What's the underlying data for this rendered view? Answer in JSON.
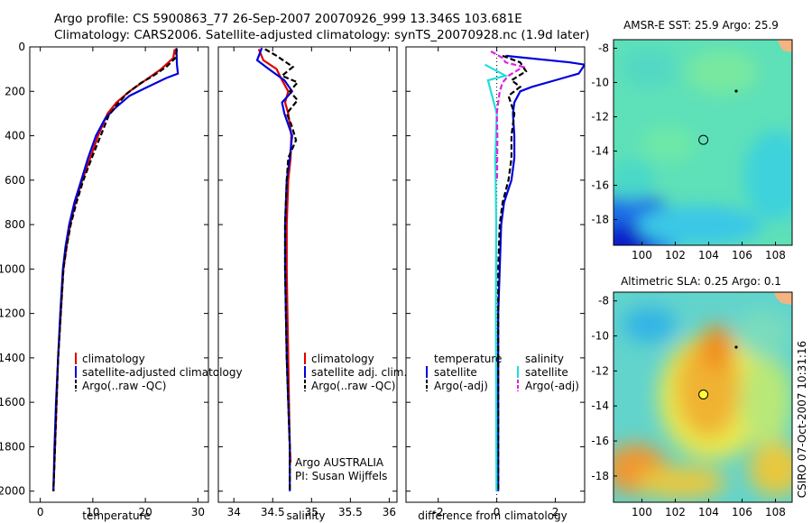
{
  "title_line1": "Argo profile: CS 5900863_77 26-Sep-2007 20070926_999 13.346S 103.681E",
  "title_line2": "Climatology: CARS2006. Satellite-adjusted climatology: synTS_20070928.nc (1.9d later)",
  "side_label": "CSIRO 07-Oct-2007 10:31:16",
  "credit_line1": "Argo AUSTRALIA",
  "credit_line2": "PI: Susan Wijffels",
  "colors": {
    "climatology": "#dd0000",
    "satellite": "#0000dd",
    "argo": "#000000",
    "sat_salinity": "#22dddd",
    "argo_salinity_diff": "#dd22dd"
  },
  "chart_data": [
    {
      "type": "line",
      "id": "temperature",
      "xlabel": "temperature",
      "ylabel": "",
      "xlim": [
        -2,
        32
      ],
      "ylim": [
        2050,
        0
      ],
      "xticks": [
        0,
        10,
        20,
        30
      ],
      "yticks": [
        0,
        200,
        400,
        600,
        800,
        1000,
        1200,
        1400,
        1600,
        1800,
        2000
      ],
      "legend": [
        "climatology",
        "satellite-adjusted climatology",
        "Argo(..raw -QC)"
      ],
      "series": [
        {
          "name": "climatology",
          "color": "#dd0000",
          "style": "solid",
          "points": [
            [
              25.6,
              10
            ],
            [
              25.3,
              50
            ],
            [
              23,
              100
            ],
            [
              20,
              150
            ],
            [
              17,
              200
            ],
            [
              14.5,
              250
            ],
            [
              12.8,
              300
            ],
            [
              11,
              400
            ],
            [
              9.5,
              500
            ],
            [
              8,
              600
            ],
            [
              6.7,
              700
            ],
            [
              5.7,
              800
            ],
            [
              5,
              900
            ],
            [
              4.4,
              1000
            ],
            [
              3.9,
              1200
            ],
            [
              3.4,
              1400
            ],
            [
              3.1,
              1600
            ],
            [
              2.8,
              1800
            ],
            [
              2.5,
              2000
            ]
          ]
        },
        {
          "name": "satellite-adjusted climatology",
          "color": "#0000dd",
          "style": "solid",
          "points": [
            [
              25.9,
              5
            ],
            [
              26,
              80
            ],
            [
              26.2,
              120
            ],
            [
              24,
              140
            ],
            [
              20.5,
              180
            ],
            [
              17,
              220
            ],
            [
              14.5,
              270
            ],
            [
              12.4,
              320
            ],
            [
              10.6,
              400
            ],
            [
              9.1,
              500
            ],
            [
              7.8,
              600
            ],
            [
              6.5,
              700
            ],
            [
              5.5,
              800
            ],
            [
              4.8,
              900
            ],
            [
              4.3,
              1000
            ],
            [
              3.8,
              1200
            ],
            [
              3.4,
              1400
            ],
            [
              3,
              1600
            ],
            [
              2.7,
              1800
            ],
            [
              2.5,
              2000
            ]
          ]
        },
        {
          "name": "Argo(..raw -QC)",
          "color": "#000000",
          "style": "dashed",
          "points": [
            [
              26,
              10
            ],
            [
              25.7,
              50
            ],
            [
              24,
              90
            ],
            [
              21.5,
              130
            ],
            [
              19,
              165
            ],
            [
              16.5,
              210
            ],
            [
              14.6,
              260
            ],
            [
              13,
              310
            ],
            [
              11.5,
              400
            ],
            [
              9.8,
              500
            ],
            [
              8.2,
              600
            ],
            [
              6.9,
              700
            ],
            [
              5.8,
              800
            ],
            [
              5,
              900
            ],
            [
              4.4,
              1000
            ],
            [
              3.9,
              1200
            ],
            [
              3.4,
              1400
            ],
            [
              3.1,
              1600
            ],
            [
              2.8,
              1800
            ],
            [
              2.5,
              2000
            ]
          ]
        }
      ]
    },
    {
      "type": "line",
      "id": "salinity",
      "xlabel": "salinity",
      "ylabel": "",
      "xlim": [
        33.8,
        36.1
      ],
      "ylim": [
        2050,
        0
      ],
      "xticks": [
        34,
        34.5,
        35,
        35.5,
        36
      ],
      "xtick_labels": [
        "34",
        "34.5",
        "35",
        "35.5",
        "36"
      ],
      "legend": [
        "climatology",
        "satellite adj. clim.",
        "Argo(..raw -QC)"
      ],
      "series": [
        {
          "name": "climatology",
          "color": "#dd0000",
          "style": "solid",
          "points": [
            [
              34.32,
              10
            ],
            [
              34.38,
              60
            ],
            [
              34.55,
              100
            ],
            [
              34.62,
              150
            ],
            [
              34.7,
              200
            ],
            [
              34.66,
              250
            ],
            [
              34.7,
              300
            ],
            [
              34.74,
              400
            ],
            [
              34.73,
              500
            ],
            [
              34.7,
              600
            ],
            [
              34.68,
              800
            ],
            [
              34.68,
              1000
            ],
            [
              34.69,
              1200
            ],
            [
              34.7,
              1400
            ],
            [
              34.71,
              1600
            ],
            [
              34.72,
              1800
            ],
            [
              34.73,
              1870
            ]
          ]
        },
        {
          "name": "satellite adj. clim.",
          "color": "#0000dd",
          "style": "solid",
          "points": [
            [
              34.36,
              5
            ],
            [
              34.3,
              60
            ],
            [
              34.45,
              100
            ],
            [
              34.65,
              150
            ],
            [
              34.75,
              200
            ],
            [
              34.62,
              250
            ],
            [
              34.65,
              300
            ],
            [
              34.75,
              400
            ],
            [
              34.72,
              500
            ],
            [
              34.68,
              600
            ],
            [
              34.66,
              800
            ],
            [
              34.66,
              1000
            ],
            [
              34.67,
              1200
            ],
            [
              34.68,
              1400
            ],
            [
              34.7,
              1600
            ],
            [
              34.72,
              1800
            ],
            [
              34.72,
              2000
            ]
          ]
        },
        {
          "name": "Argo(..raw -QC)",
          "color": "#000000",
          "style": "dashed",
          "points": [
            [
              34.4,
              10
            ],
            [
              34.55,
              40
            ],
            [
              34.76,
              90
            ],
            [
              34.62,
              130
            ],
            [
              34.82,
              160
            ],
            [
              34.72,
              200
            ],
            [
              34.82,
              240
            ],
            [
              34.68,
              300
            ],
            [
              34.74,
              350
            ],
            [
              34.8,
              420
            ],
            [
              34.7,
              500
            ],
            [
              34.68,
              600
            ],
            [
              34.66,
              800
            ],
            [
              34.66,
              1000
            ],
            [
              34.67,
              1200
            ],
            [
              34.68,
              1400
            ],
            [
              34.7,
              1600
            ],
            [
              34.72,
              1800
            ],
            [
              34.72,
              2000
            ]
          ]
        }
      ]
    },
    {
      "type": "line",
      "id": "difference",
      "xlabel": "difference from climatology",
      "ylabel": "",
      "xlim": [
        -3.1,
        3
      ],
      "ylim": [
        2050,
        0
      ],
      "xticks": [
        -2,
        0,
        2
      ],
      "legend_groups": [
        {
          "heading": "temperature",
          "items": [
            "satellite",
            "Argo(-adj)"
          ]
        },
        {
          "heading": "salinity",
          "items": [
            "satellite",
            "Argo(-adj)"
          ]
        }
      ],
      "series": [
        {
          "name": "temperature satellite",
          "color": "#0000dd",
          "style": "solid",
          "points": [
            [
              0.3,
              40
            ],
            [
              2.5,
              70
            ],
            [
              3.0,
              80
            ],
            [
              2.8,
              120
            ],
            [
              2.0,
              150
            ],
            [
              1.2,
              180
            ],
            [
              0.8,
              200
            ],
            [
              0.6,
              250
            ],
            [
              0.55,
              300
            ],
            [
              0.6,
              400
            ],
            [
              0.6,
              500
            ],
            [
              0.5,
              600
            ],
            [
              0.25,
              700
            ],
            [
              0.15,
              800
            ],
            [
              0.1,
              1000
            ],
            [
              0.05,
              1200
            ],
            [
              0.05,
              1600
            ],
            [
              0.05,
              2000
            ]
          ]
        },
        {
          "name": "temperature Argo(-adj)",
          "color": "#000000",
          "style": "dashed",
          "points": [
            [
              0.2,
              40
            ],
            [
              0.8,
              70
            ],
            [
              1.0,
              110
            ],
            [
              0.5,
              150
            ],
            [
              0.8,
              180
            ],
            [
              0.4,
              220
            ],
            [
              0.6,
              300
            ],
            [
              0.5,
              400
            ],
            [
              0.5,
              500
            ],
            [
              0.4,
              600
            ],
            [
              0.2,
              700
            ],
            [
              0.1,
              800
            ],
            [
              0.05,
              1000
            ],
            [
              0.05,
              1400
            ],
            [
              0.05,
              2000
            ]
          ]
        },
        {
          "name": "salinity satellite",
          "color": "#22dddd",
          "style": "solid",
          "points": [
            [
              -0.4,
              80
            ],
            [
              0.3,
              130
            ],
            [
              -0.3,
              150
            ],
            [
              -0.2,
              200
            ],
            [
              0.0,
              300
            ],
            [
              -0.05,
              500
            ],
            [
              -0.02,
              800
            ],
            [
              -0.03,
              1200
            ],
            [
              -0.02,
              1600
            ],
            [
              -0.01,
              2000
            ]
          ]
        },
        {
          "name": "salinity Argo(-adj)",
          "color": "#dd22dd",
          "style": "dashed",
          "points": [
            [
              -0.2,
              20
            ],
            [
              0.2,
              50
            ],
            [
              0.3,
              70
            ],
            [
              0.9,
              90
            ],
            [
              0.4,
              130
            ],
            [
              0.2,
              160
            ],
            [
              0.1,
              200
            ],
            [
              0.05,
              250
            ],
            [
              0.0,
              300
            ],
            [
              0.02,
              400
            ],
            [
              0.01,
              600
            ]
          ]
        }
      ]
    },
    {
      "type": "heatmap",
      "id": "sst_map",
      "title": "AMSR-E SST: 25.9 Argo: 25.9",
      "xlim": [
        98.3,
        109
      ],
      "ylim": [
        -19.5,
        -7.5
      ],
      "xticks": [
        100,
        102,
        104,
        106,
        108
      ],
      "yticks": [
        -8,
        -10,
        -12,
        -14,
        -16,
        -18
      ],
      "argo_position": [
        103.681,
        -13.346
      ]
    },
    {
      "type": "heatmap",
      "id": "sla_map",
      "title": "Altimetric SLA: 0.25 Argo: 0.1",
      "xlim": [
        98.3,
        109
      ],
      "ylim": [
        -19.5,
        -7.5
      ],
      "xticks": [
        100,
        102,
        104,
        106,
        108
      ],
      "yticks": [
        -8,
        -10,
        -12,
        -14,
        -16,
        -18
      ],
      "argo_position": [
        103.681,
        -13.346
      ]
    }
  ]
}
